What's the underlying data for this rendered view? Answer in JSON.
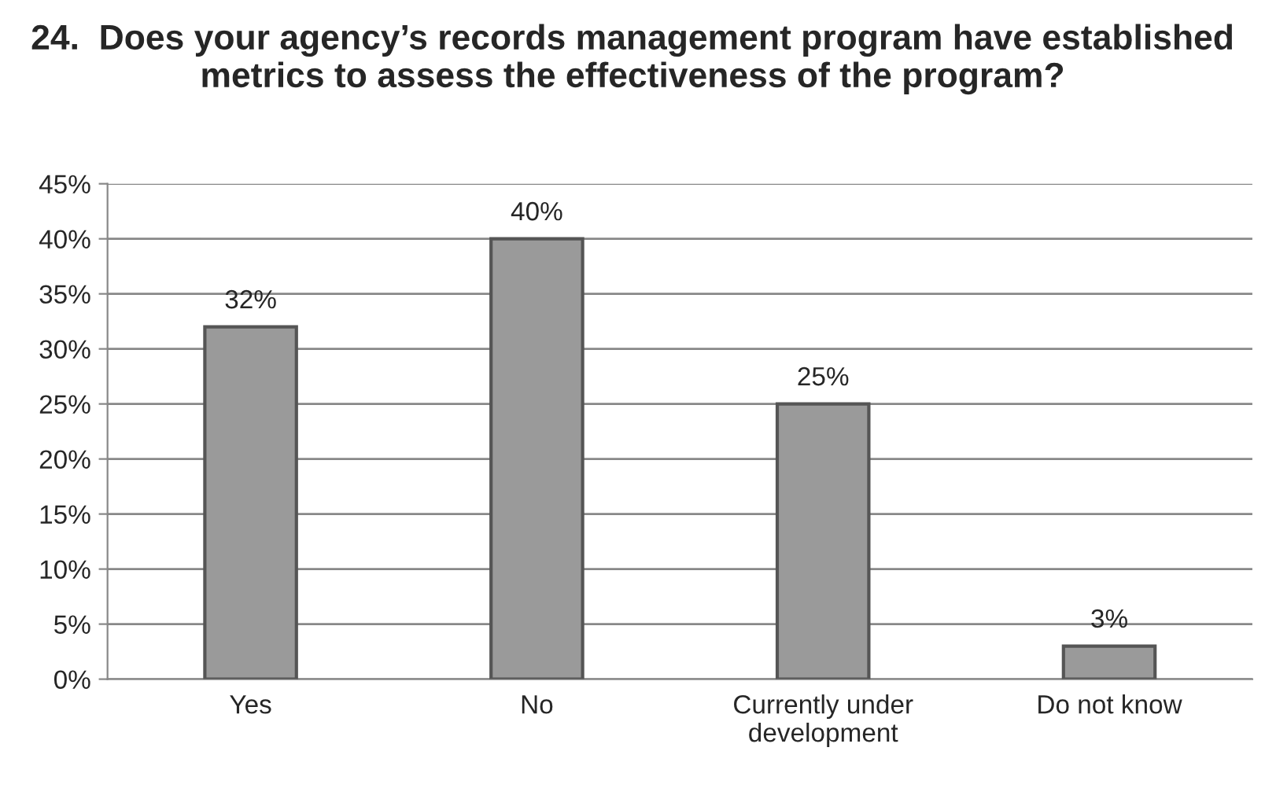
{
  "chart_data": {
    "type": "bar",
    "title": "24.  Does your agency’s records management program have established metrics to assess the effectiveness of the program?",
    "categories": [
      "Yes",
      "No",
      "Currently under\ndevelopment",
      "Do not know"
    ],
    "values": [
      32,
      40,
      25,
      3
    ],
    "value_labels": [
      "32%",
      "40%",
      "25%",
      "3%"
    ],
    "color": "#9a9a9a",
    "ylim": [
      0,
      45
    ],
    "yticks": [
      {
        "value": 0,
        "label": "0%"
      },
      {
        "value": 5,
        "label": "5%"
      },
      {
        "value": 10,
        "label": "10%"
      },
      {
        "value": 15,
        "label": "15%"
      },
      {
        "value": 20,
        "label": "20%"
      },
      {
        "value": 25,
        "label": "25%"
      },
      {
        "value": 30,
        "label": "30%"
      },
      {
        "value": 35,
        "label": "35%"
      },
      {
        "value": 40,
        "label": "40%"
      },
      {
        "value": 45,
        "label": "45%"
      }
    ],
    "grid": "y"
  }
}
